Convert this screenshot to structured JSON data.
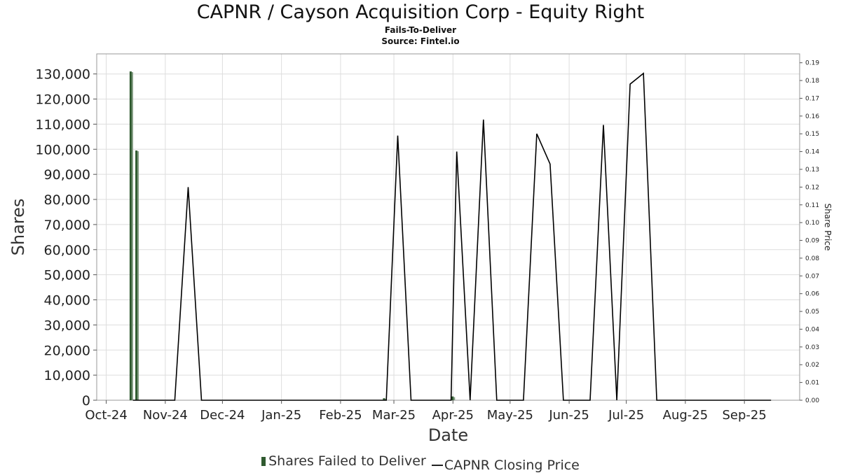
{
  "header": {
    "title": "CAPNR / Cayson Acquisition Corp - Equity Right",
    "subtitle": "Fails-To-Deliver",
    "source": "Source: Fintel.io"
  },
  "legend": {
    "bars": "Shares Failed to Deliver",
    "line": "CAPNR Closing Price"
  },
  "colors": {
    "bar": "#2f5a2f",
    "bar_light": "#7f9a7f",
    "line": "#000000",
    "grid": "#dddddd"
  },
  "chart_data": {
    "type": "bar",
    "xlabel": "Date",
    "ylabel": "Shares",
    "y2label": "Share Price",
    "x_range": [
      "2024-09-26",
      "2025-09-30"
    ],
    "ylim": [
      0,
      138000
    ],
    "y2lim": [
      0,
      0.195
    ],
    "x_ticks": [
      {
        "date": "2024-10-01",
        "label": "Oct-24"
      },
      {
        "date": "2024-11-01",
        "label": "Nov-24"
      },
      {
        "date": "2024-12-01",
        "label": "Dec-24"
      },
      {
        "date": "2025-01-01",
        "label": "Jan-25"
      },
      {
        "date": "2025-02-01",
        "label": "Feb-25"
      },
      {
        "date": "2025-03-01",
        "label": "Mar-25"
      },
      {
        "date": "2025-04-01",
        "label": "Apr-25"
      },
      {
        "date": "2025-05-01",
        "label": "May-25"
      },
      {
        "date": "2025-06-01",
        "label": "Jun-25"
      },
      {
        "date": "2025-07-01",
        "label": "Jul-25"
      },
      {
        "date": "2025-08-01",
        "label": "Aug-25"
      },
      {
        "date": "2025-09-01",
        "label": "Sep-25"
      }
    ],
    "y_ticks": [
      {
        "value": 0,
        "label": "0"
      },
      {
        "value": 10000,
        "label": "10,000"
      },
      {
        "value": 20000,
        "label": "20,000"
      },
      {
        "value": 30000,
        "label": "30,000"
      },
      {
        "value": 40000,
        "label": "40,000"
      },
      {
        "value": 50000,
        "label": "50,000"
      },
      {
        "value": 60000,
        "label": "60,000"
      },
      {
        "value": 70000,
        "label": "70,000"
      },
      {
        "value": 80000,
        "label": "80,000"
      },
      {
        "value": 90000,
        "label": "90,000"
      },
      {
        "value": 100000,
        "label": "100,000"
      },
      {
        "value": 110000,
        "label": "110,000"
      },
      {
        "value": 120000,
        "label": "120,000"
      },
      {
        "value": 130000,
        "label": "130,000"
      }
    ],
    "y2_ticks": [
      {
        "value": 0.0,
        "label": "0.00"
      },
      {
        "value": 0.01,
        "label": "0.01"
      },
      {
        "value": 0.02,
        "label": "0.02"
      },
      {
        "value": 0.03,
        "label": "0.03"
      },
      {
        "value": 0.04,
        "label": "0.04"
      },
      {
        "value": 0.05,
        "label": "0.05"
      },
      {
        "value": 0.06,
        "label": "0.06"
      },
      {
        "value": 0.07,
        "label": "0.07"
      },
      {
        "value": 0.08,
        "label": "0.08"
      },
      {
        "value": 0.09,
        "label": "0.09"
      },
      {
        "value": 0.1,
        "label": "0.10"
      },
      {
        "value": 0.11,
        "label": "0.11"
      },
      {
        "value": 0.12,
        "label": "0.12"
      },
      {
        "value": 0.13,
        "label": "0.13"
      },
      {
        "value": 0.14,
        "label": "0.14"
      },
      {
        "value": 0.15,
        "label": "0.15"
      },
      {
        "value": 0.16,
        "label": "0.16"
      },
      {
        "value": 0.17,
        "label": "0.17"
      },
      {
        "value": 0.18,
        "label": "0.18"
      },
      {
        "value": 0.19,
        "label": "0.19"
      }
    ],
    "series": [
      {
        "name": "Shares Failed to Deliver",
        "kind": "bar",
        "points": [
          {
            "x": "2024-10-14",
            "y": 131000
          },
          {
            "x": "2024-10-17",
            "y": 99500
          },
          {
            "x": "2025-02-24",
            "y": 800
          },
          {
            "x": "2025-04-01",
            "y": 1500
          }
        ]
      },
      {
        "name": "CAPNR Closing Price",
        "kind": "line",
        "points": [
          {
            "x": "2024-10-15",
            "y": 0
          },
          {
            "x": "2024-11-06",
            "y": 0
          },
          {
            "x": "2024-11-13",
            "y": 0.12
          },
          {
            "x": "2024-11-20",
            "y": 0
          },
          {
            "x": "2025-02-25",
            "y": 0
          },
          {
            "x": "2025-03-03",
            "y": 0.149
          },
          {
            "x": "2025-03-10",
            "y": 0
          },
          {
            "x": "2025-03-31",
            "y": 0
          },
          {
            "x": "2025-04-03",
            "y": 0.14
          },
          {
            "x": "2025-04-10",
            "y": 0
          },
          {
            "x": "2025-04-17",
            "y": 0.158
          },
          {
            "x": "2025-04-24",
            "y": 0
          },
          {
            "x": "2025-05-08",
            "y": 0
          },
          {
            "x": "2025-05-15",
            "y": 0.15
          },
          {
            "x": "2025-05-22",
            "y": 0.133
          },
          {
            "x": "2025-05-29",
            "y": 0
          },
          {
            "x": "2025-06-12",
            "y": 0
          },
          {
            "x": "2025-06-19",
            "y": 0.155
          },
          {
            "x": "2025-06-26",
            "y": 0
          },
          {
            "x": "2025-07-03",
            "y": 0.178
          },
          {
            "x": "2025-07-10",
            "y": 0.184
          },
          {
            "x": "2025-07-17",
            "y": 0
          },
          {
            "x": "2025-09-15",
            "y": 0
          }
        ]
      }
    ]
  }
}
